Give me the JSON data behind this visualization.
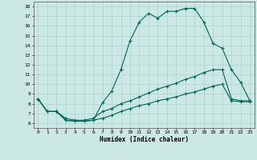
{
  "xlabel": "Humidex (Indice chaleur)",
  "background_color": "#cce8e4",
  "line_color": "#006655",
  "grid_color": "#aad4ce",
  "xlim": [
    -0.5,
    23.5
  ],
  "ylim": [
    5.5,
    18.5
  ],
  "xticks": [
    0,
    1,
    2,
    3,
    4,
    5,
    6,
    7,
    8,
    9,
    10,
    11,
    12,
    13,
    14,
    15,
    16,
    17,
    18,
    19,
    20,
    21,
    22,
    23
  ],
  "yticks": [
    6,
    7,
    8,
    9,
    10,
    11,
    12,
    13,
    14,
    15,
    16,
    17,
    18
  ],
  "line1_x": [
    0,
    1,
    2,
    3,
    4,
    5,
    6,
    7,
    8,
    9,
    10,
    11,
    12,
    13,
    14,
    15,
    16,
    17,
    18,
    19,
    20,
    21,
    22,
    23
  ],
  "line1_y": [
    8.5,
    7.2,
    7.2,
    6.3,
    6.2,
    6.2,
    6.3,
    8.1,
    9.3,
    11.5,
    14.5,
    16.4,
    17.3,
    16.8,
    17.5,
    17.5,
    17.8,
    17.8,
    16.4,
    14.2,
    13.7,
    11.5,
    10.2,
    8.3
  ],
  "line2_x": [
    0,
    1,
    2,
    3,
    4,
    5,
    6,
    7,
    8,
    9,
    10,
    11,
    12,
    13,
    14,
    15,
    16,
    17,
    18,
    19,
    20,
    21,
    22,
    23
  ],
  "line2_y": [
    8.5,
    7.2,
    7.2,
    6.5,
    6.3,
    6.3,
    6.5,
    7.2,
    7.5,
    8.0,
    8.3,
    8.7,
    9.1,
    9.5,
    9.8,
    10.1,
    10.5,
    10.8,
    11.2,
    11.5,
    11.5,
    8.5,
    8.3,
    8.3
  ],
  "line3_x": [
    0,
    1,
    2,
    3,
    4,
    5,
    6,
    7,
    8,
    9,
    10,
    11,
    12,
    13,
    14,
    15,
    16,
    17,
    18,
    19,
    20,
    21,
    22,
    23
  ],
  "line3_y": [
    8.5,
    7.2,
    7.2,
    6.3,
    6.2,
    6.2,
    6.3,
    6.5,
    6.8,
    7.2,
    7.5,
    7.8,
    8.0,
    8.3,
    8.5,
    8.7,
    9.0,
    9.2,
    9.5,
    9.8,
    10.0,
    8.3,
    8.2,
    8.2
  ]
}
